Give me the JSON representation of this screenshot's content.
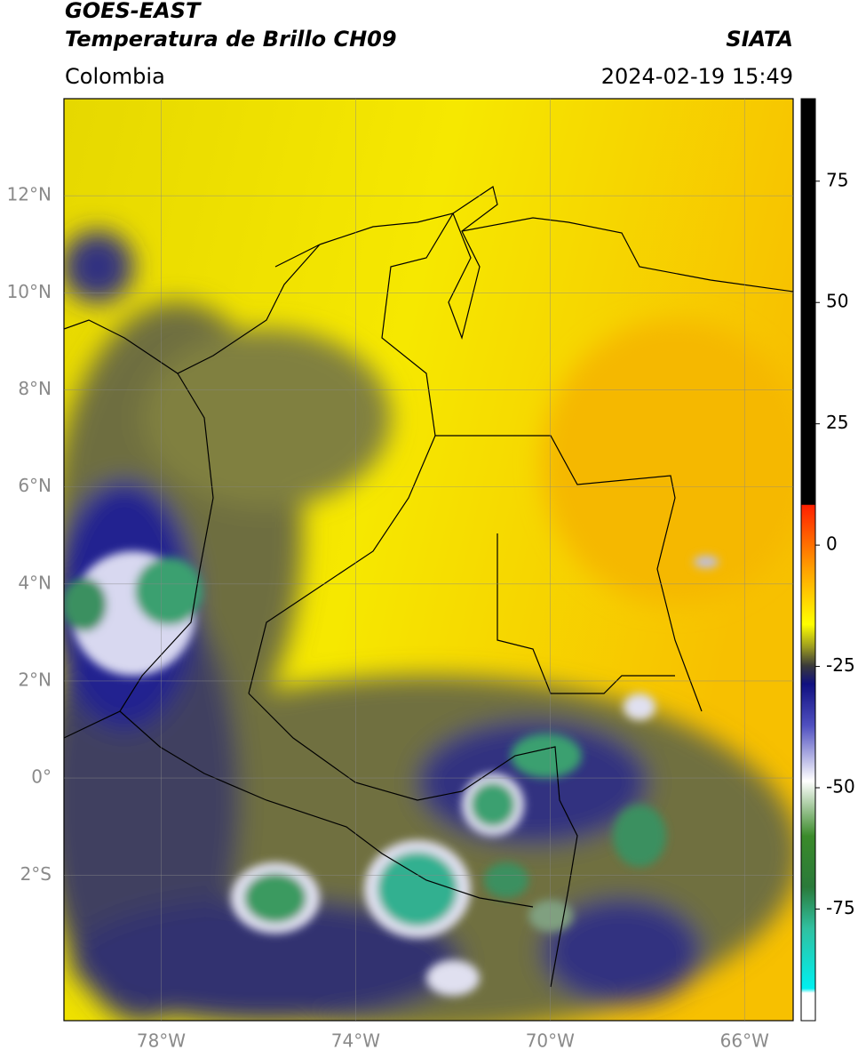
{
  "header": {
    "title": "GOES-EAST",
    "subtitle": "Temperatura de Brillo CH09",
    "region": "Colombia",
    "source": "SIATA",
    "datetime": "2024-02-19 15:49"
  },
  "map": {
    "lonlim": [
      -80,
      -65
    ],
    "latlim": [
      -5,
      14
    ],
    "lon_ticks": [
      {
        "value": -78,
        "label": "78°W"
      },
      {
        "value": -74,
        "label": "74°W"
      },
      {
        "value": -70,
        "label": "70°W"
      },
      {
        "value": -66,
        "label": "66°W"
      }
    ],
    "lat_ticks": [
      {
        "value": 12,
        "label": "12°N"
      },
      {
        "value": 10,
        "label": "10°N"
      },
      {
        "value": 8,
        "label": "8°N"
      },
      {
        "value": 6,
        "label": "6°N"
      },
      {
        "value": 4,
        "label": "4°N"
      },
      {
        "value": 2,
        "label": "2°N"
      },
      {
        "value": 0,
        "label": "0°"
      },
      {
        "value": -2,
        "label": "2°S"
      }
    ]
  },
  "colorbar": {
    "lim": [
      -98,
      92
    ],
    "ticks": [
      75,
      50,
      25,
      0,
      -25,
      -50,
      -75
    ]
  }
}
